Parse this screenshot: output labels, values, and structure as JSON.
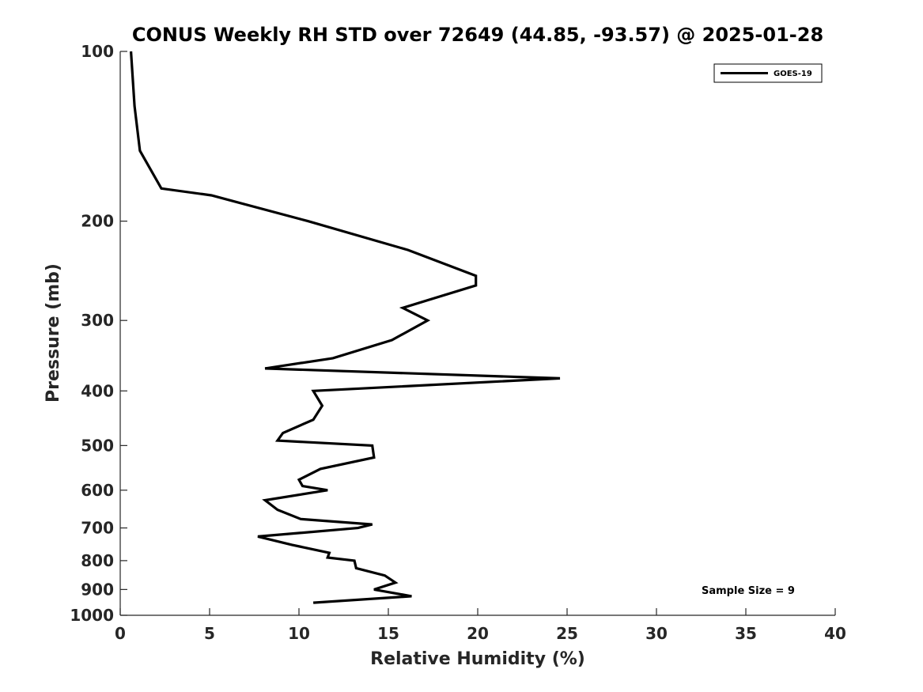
{
  "chart_data": {
    "type": "line",
    "title": "CONUS Weekly RH STD over 72649 (44.85, -93.57) @ 2025-01-28",
    "xlabel": "Relative Humidity (%)",
    "ylabel": "Pressure (mb)",
    "xlim": [
      0,
      40
    ],
    "ylim": [
      100,
      1000
    ],
    "y_scale": "log",
    "y_reversed": true,
    "x_ticks": [
      "0",
      "5",
      "10",
      "15",
      "20",
      "25",
      "30",
      "35",
      "40"
    ],
    "y_ticks": [
      "100",
      "200",
      "300",
      "400",
      "500",
      "600",
      "700",
      "800",
      "900",
      "1000"
    ],
    "grid": false,
    "legend_position": "top-right",
    "annotation": "Sample Size = 9",
    "series": [
      {
        "name": "GOES-19",
        "color": "#000000",
        "points": [
          [
            0.6,
            100
          ],
          [
            0.8,
            125
          ],
          [
            1.1,
            150
          ],
          [
            2.3,
            175
          ],
          [
            5.1,
            180
          ],
          [
            10.5,
            200
          ],
          [
            16.1,
            225
          ],
          [
            19.9,
            250
          ],
          [
            19.9,
            260
          ],
          [
            15.8,
            285
          ],
          [
            17.2,
            300
          ],
          [
            15.2,
            325
          ],
          [
            11.9,
            350
          ],
          [
            8.1,
            365
          ],
          [
            24.6,
            380
          ],
          [
            10.8,
            400
          ],
          [
            11.3,
            425
          ],
          [
            10.8,
            450
          ],
          [
            9.1,
            475
          ],
          [
            8.8,
            490
          ],
          [
            14.1,
            500
          ],
          [
            14.2,
            525
          ],
          [
            11.2,
            550
          ],
          [
            10.0,
            575
          ],
          [
            10.2,
            590
          ],
          [
            11.6,
            600
          ],
          [
            8.1,
            625
          ],
          [
            8.8,
            650
          ],
          [
            10.1,
            675
          ],
          [
            14.1,
            690
          ],
          [
            13.3,
            700
          ],
          [
            7.7,
            725
          ],
          [
            9.6,
            750
          ],
          [
            11.7,
            775
          ],
          [
            11.6,
            790
          ],
          [
            13.1,
            800
          ],
          [
            13.2,
            825
          ],
          [
            14.8,
            850
          ],
          [
            15.4,
            875
          ],
          [
            14.2,
            900
          ],
          [
            16.3,
            925
          ],
          [
            10.8,
            950
          ]
        ]
      }
    ]
  }
}
